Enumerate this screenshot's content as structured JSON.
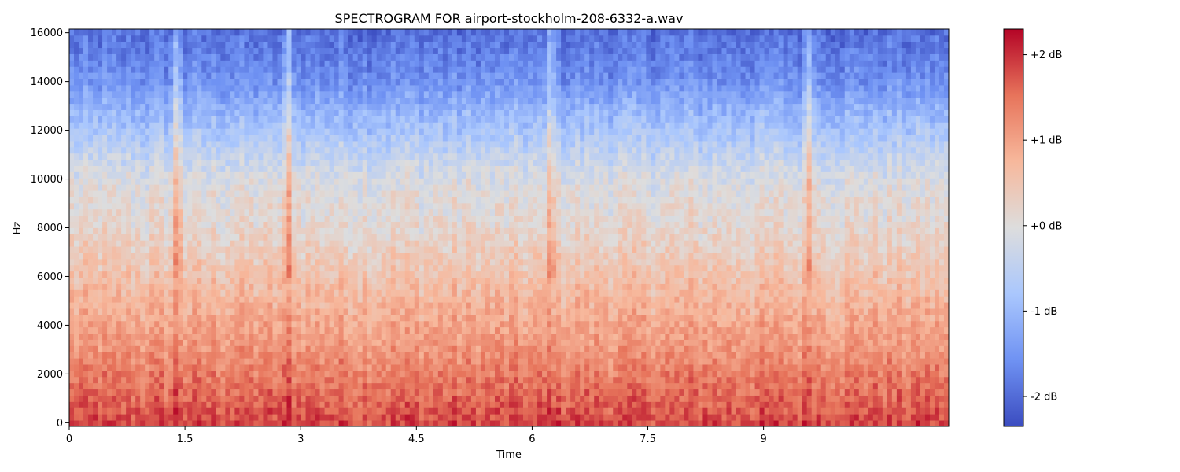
{
  "chart_data": {
    "type": "heatmap",
    "title": "SPECTROGRAM FOR airport-stockholm-208-6332-a.wav",
    "xlabel": "Time",
    "ylabel": "Hz",
    "xlim": [
      0,
      11.4
    ],
    "ylim": [
      -150,
      16150
    ],
    "x_ticks": [
      0,
      1.5,
      3,
      4.5,
      6,
      7.5,
      9
    ],
    "x_tick_labels": [
      "0",
      "1.5",
      "3",
      "4.5",
      "6",
      "7.5",
      "9"
    ],
    "y_ticks": [
      0,
      2000,
      4000,
      6000,
      8000,
      10000,
      12000,
      14000,
      16000
    ],
    "y_tick_labels": [
      "0",
      "2000",
      "4000",
      "6000",
      "8000",
      "10000",
      "12000",
      "14000",
      "16000"
    ],
    "colorbar": {
      "range": [
        -2.35,
        2.3
      ],
      "ticks": [
        2,
        1,
        0,
        -1,
        -2
      ],
      "tick_labels": [
        "+2 dB",
        "+1 dB",
        "+0 dB",
        "-1 dB",
        "-2 dB"
      ],
      "colormap": "coolwarm",
      "colormap_stops": [
        "#3b4cc0",
        "#6f92f3",
        "#aac7fd",
        "#dddddd",
        "#f7b89c",
        "#e7745b",
        "#b40426"
      ]
    },
    "mean_level_profile": {
      "frequency_hz": [
        0,
        1000,
        2000,
        3000,
        4000,
        5000,
        6000,
        7000,
        8000,
        9000,
        10000,
        11000,
        12000,
        13000,
        14000,
        15000,
        16000
      ],
      "level_db": [
        1.85,
        1.6,
        1.4,
        1.15,
        0.95,
        0.75,
        0.55,
        0.35,
        0.15,
        0.05,
        -0.1,
        -0.45,
        -0.8,
        -1.15,
        -1.55,
        -1.75,
        -1.95
      ]
    },
    "transient_times_s": [
      1.4,
      2.85,
      6.25,
      9.6
    ],
    "grid": false
  }
}
